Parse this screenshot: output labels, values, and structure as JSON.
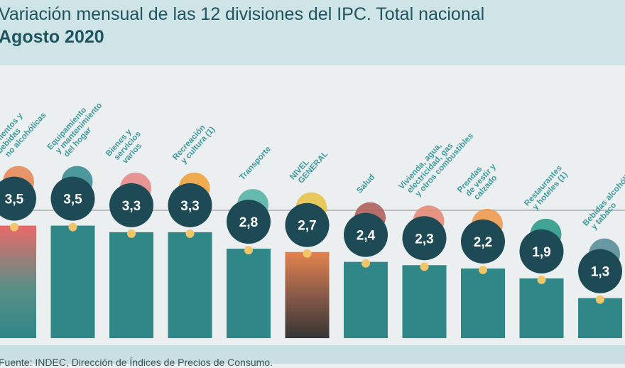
{
  "header": {
    "title": "Variación mensual de las 12 divisiones del IPC. Total nacional",
    "subtitle": "Agosto 2020"
  },
  "footer": {
    "source": "Fuente: INDEC, Dirección de Índices de Precios de Consumo."
  },
  "colors": {
    "bar": "#2f8787",
    "bubble": "#1e4a55",
    "dot": "#f1c56a",
    "label": "#3f9a9e",
    "highlight_food_top": "#e86a6a",
    "highlight_general_top": "#e5824d"
  },
  "chart_data": {
    "type": "bar",
    "title": "Variación mensual de las 12 divisiones del IPC. Total nacional",
    "subtitle": "Agosto 2020",
    "categories": [
      "Alimentos y bebidas no alcohólicas",
      "Equipamiento y mantenimiento del hogar",
      "Bienes y servicios varios",
      "Recreación y cultura (1)",
      "Transporte",
      "NIVEL GENERAL",
      "Salud",
      "Vivienda, agua, electricidad, gas y otros combustibles",
      "Prendas de vestir y calzado",
      "Restaurantes y hoteles (1)",
      "Bebidas alcohólicas y tabaco"
    ],
    "label_lines": [
      [
        "Alimentos y",
        "bebidas",
        "no alcohólicas"
      ],
      [
        "Equipamiento",
        "y mantenimiento",
        "del hogar"
      ],
      [
        "Bienes y",
        "servicios",
        "varios"
      ],
      [
        "Recreación",
        "y cultura (1)"
      ],
      [
        "Transporte"
      ],
      [
        "NIVEL",
        "GENERAL"
      ],
      [
        "Salud"
      ],
      [
        "Vivienda, agua,",
        "electricidad, gas",
        "y otros combustibles"
      ],
      [
        "Prendas",
        "de vestir y",
        "calzado"
      ],
      [
        "Restaurantes",
        "y hoteles (1)"
      ],
      [
        "Bebidas alcohólicas",
        "y tabaco"
      ]
    ],
    "values": [
      3.5,
      3.5,
      3.3,
      3.3,
      2.8,
      2.7,
      2.4,
      2.3,
      2.2,
      1.9,
      1.3
    ],
    "value_labels": [
      "3,5",
      "3,5",
      "3,3",
      "3,3",
      "2,8",
      "2,7",
      "2,4",
      "2,3",
      "2,2",
      "1,9",
      "1,3"
    ],
    "icons": [
      "roast-chicken-icon",
      "washing-machine-icon",
      "scissors-icon",
      "camera-icon",
      "bus-icon",
      "shopping-basket-icon",
      "first-aid-kit-icon",
      "lightbulb-icon",
      "tshirt-icon",
      "luggage-icon",
      "bottle-glass-icon"
    ],
    "highlight": [
      "Alimentos y bebidas no alcohólicas",
      "NIVEL GENERAL"
    ],
    "xlabel": "",
    "ylabel": "",
    "ylim": [
      0,
      3.5
    ],
    "grid": false,
    "legend": "none"
  }
}
